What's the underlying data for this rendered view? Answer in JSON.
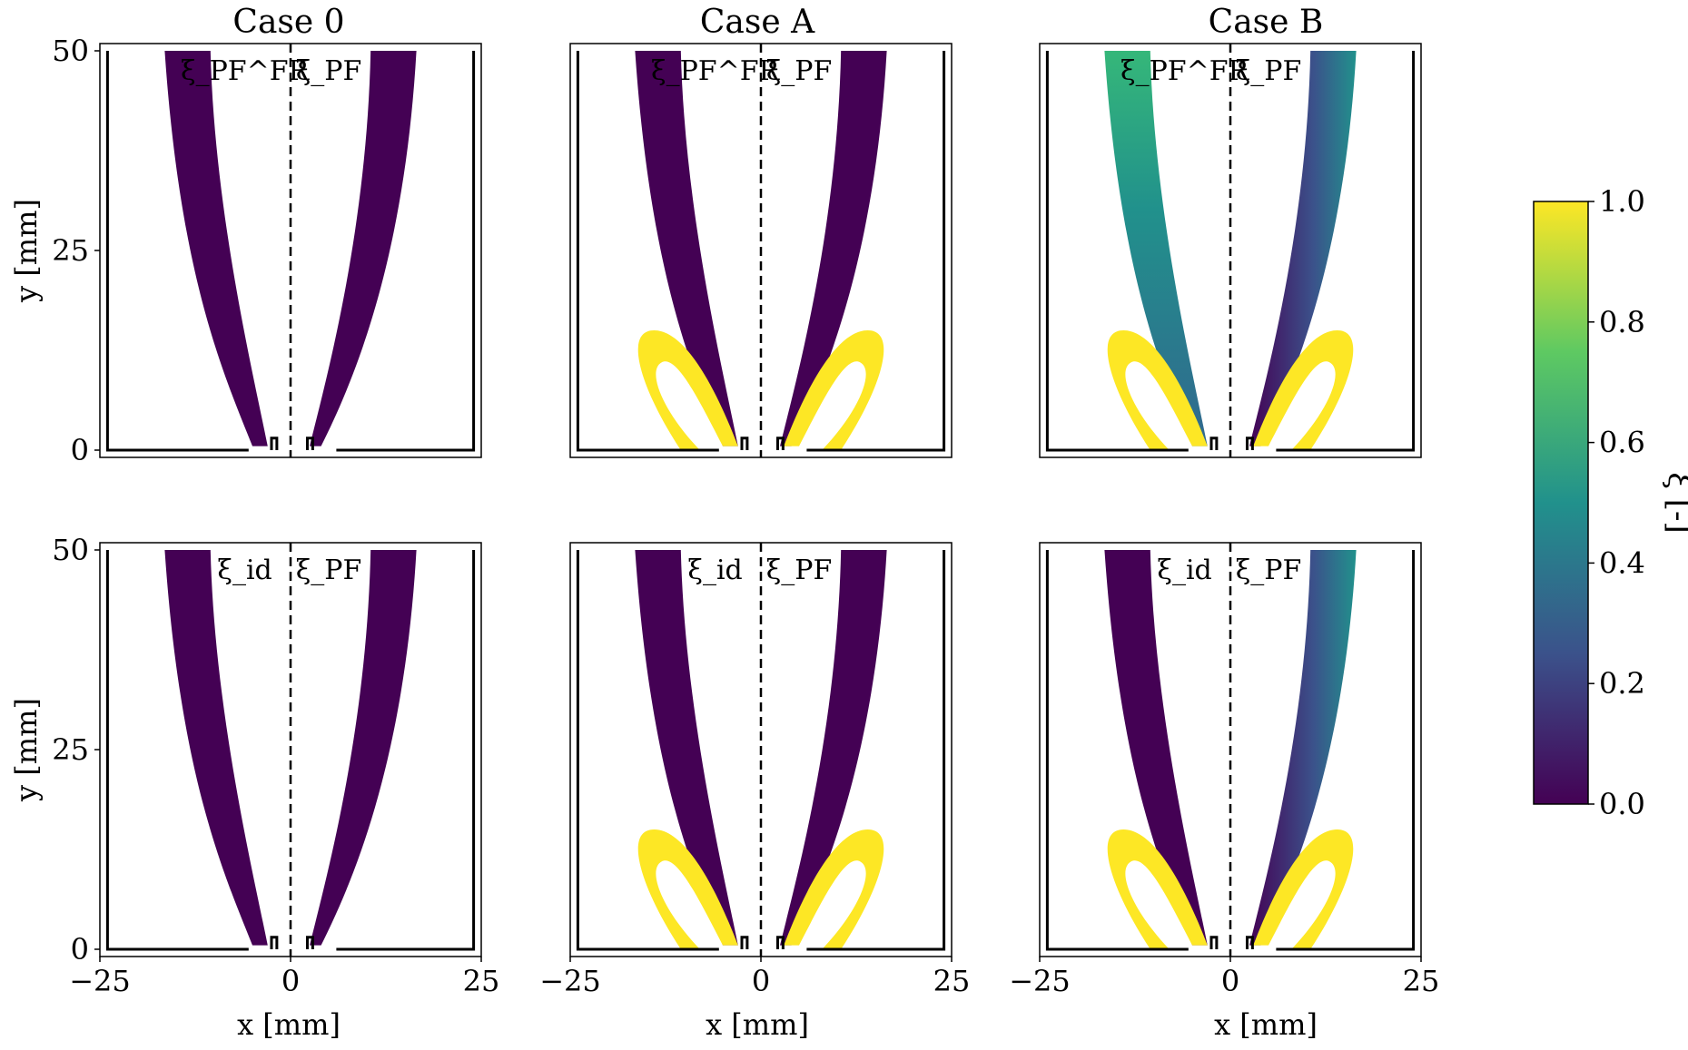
{
  "figure": {
    "columns": [
      "Case 0",
      "Case A",
      "Case B"
    ],
    "xlabel": "x [mm]",
    "ylabel": "y [mm]",
    "xticks": [
      "−25",
      "0",
      "25"
    ],
    "yticks": [
      "0",
      "25",
      "50"
    ],
    "colorbar": {
      "label": "ξ [-]",
      "ticks": [
        "0.0",
        "0.2",
        "0.4",
        "0.6",
        "0.8",
        "1.0"
      ]
    },
    "colormap": [
      "#440154",
      "#3b528b",
      "#21918c",
      "#5ec962",
      "#fde725"
    ]
  },
  "chart_data": [
    {
      "type": "heatmap",
      "title": "Case 0",
      "ylabel": "y [mm]",
      "xlim": [
        -25,
        25
      ],
      "ylim": [
        0,
        50
      ],
      "left_label": "ξ_PF^FR",
      "right_label": "ξ_PF",
      "left_typical_value": 0.0,
      "right_typical_value": 0.0
    },
    {
      "type": "heatmap",
      "title": "Case A",
      "xlim": [
        -25,
        25
      ],
      "ylim": [
        0,
        50
      ],
      "left_label": "ξ_PF^FR",
      "right_label": "ξ_PF",
      "left_typical_value": 0.0,
      "right_typical_value": 0.0,
      "recirculation_value": 1.0
    },
    {
      "type": "heatmap",
      "title": "Case B",
      "xlim": [
        -25,
        25
      ],
      "ylim": [
        0,
        50
      ],
      "left_label": "ξ_PF^FR",
      "right_label": "ξ_PF",
      "left_typical_value": 0.6,
      "right_typical_value": 0.1,
      "recirculation_value": 1.0
    },
    {
      "type": "heatmap",
      "xlabel": "x [mm]",
      "ylabel": "y [mm]",
      "xlim": [
        -25,
        25
      ],
      "ylim": [
        0,
        50
      ],
      "left_label": "ξ_id",
      "right_label": "ξ_PF",
      "left_typical_value": 0.0,
      "right_typical_value": 0.0
    },
    {
      "type": "heatmap",
      "xlabel": "x [mm]",
      "xlim": [
        -25,
        25
      ],
      "ylim": [
        0,
        50
      ],
      "left_label": "ξ_id",
      "right_label": "ξ_PF",
      "left_typical_value": 0.0,
      "right_typical_value": 0.0,
      "recirculation_value": 1.0
    },
    {
      "type": "heatmap",
      "xlabel": "x [mm]",
      "xlim": [
        -25,
        25
      ],
      "ylim": [
        0,
        50
      ],
      "left_label": "ξ_id",
      "right_label": "ξ_PF",
      "left_typical_value": 0.0,
      "right_typical_value": 0.1,
      "recirculation_value": 1.0
    }
  ]
}
